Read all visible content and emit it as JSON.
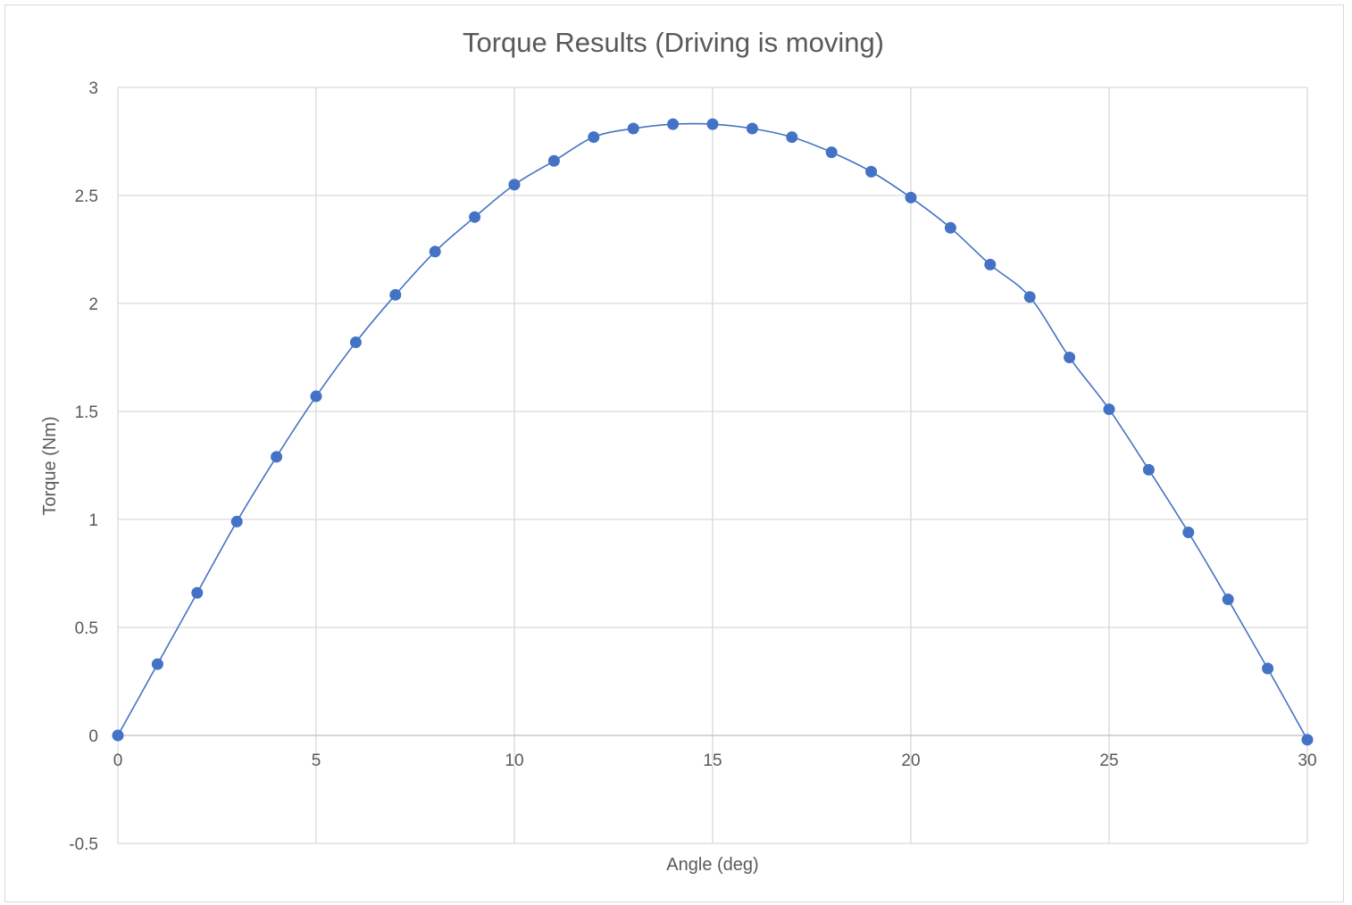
{
  "chart_data": {
    "type": "scatter",
    "title": "Torque Results (Driving is moving)",
    "xlabel": "Angle (deg)",
    "ylabel": "Torque (Nm)",
    "xlim": [
      0,
      30
    ],
    "ylim": [
      -0.5,
      3
    ],
    "x_ticks": [
      "0",
      "5",
      "10",
      "15",
      "20",
      "25",
      "30"
    ],
    "y_ticks": [
      "-0.5",
      "0",
      "0.5",
      "1",
      "1.5",
      "2",
      "2.5",
      "3"
    ],
    "grid": true,
    "legend": "none",
    "series": [
      {
        "color": "#4472c4",
        "line": "smooth",
        "marker": "circle",
        "x": [
          0,
          1,
          2,
          3,
          4,
          5,
          6,
          7,
          8,
          9,
          10,
          11,
          12,
          13,
          14,
          15,
          16,
          17,
          18,
          19,
          20,
          21,
          22,
          23,
          24,
          25,
          26,
          27,
          28,
          29,
          30
        ],
        "y": [
          0,
          0.33,
          0.66,
          0.99,
          1.29,
          1.57,
          1.82,
          2.04,
          2.24,
          2.4,
          2.55,
          2.66,
          2.77,
          2.81,
          2.83,
          2.83,
          2.81,
          2.77,
          2.7,
          2.61,
          2.49,
          2.35,
          2.18,
          2.03,
          1.75,
          1.51,
          1.23,
          0.94,
          0.63,
          0.31,
          -0.02
        ]
      }
    ]
  }
}
